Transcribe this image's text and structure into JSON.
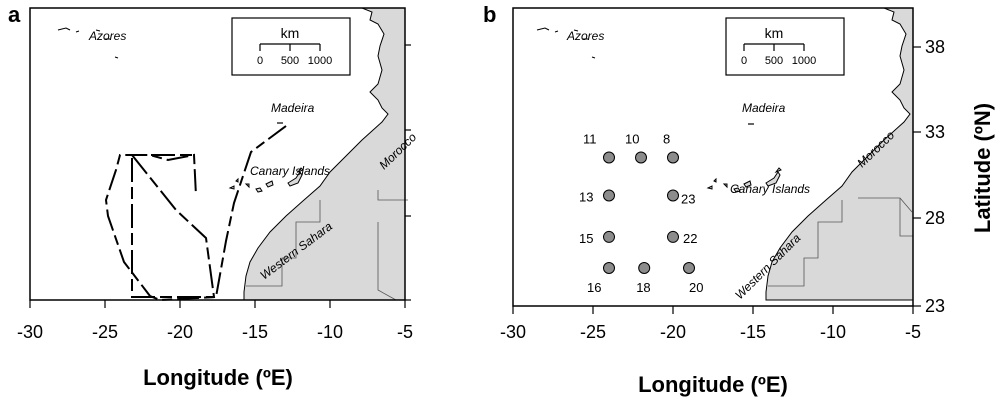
{
  "panels": {
    "a": {
      "letter": "a",
      "labels": {
        "azores": "Azores",
        "madeira": "Madeira",
        "canary": "Canary Islands",
        "morocco": "Morocco",
        "wsahara": "Western Sahara"
      },
      "scale": {
        "unit": "km",
        "ticks": [
          "0",
          "500",
          "1000"
        ]
      },
      "x_ticks": [
        "-30",
        "-25",
        "-20",
        "-15",
        "-10",
        "-5"
      ],
      "x_title": "Longitude (ºE)"
    },
    "b": {
      "letter": "b",
      "labels": {
        "azores": "Azores",
        "madeira": "Madeira",
        "canary": "Canary Islands",
        "morocco": "Morocco",
        "wsahara": "Western Sahara"
      },
      "scale": {
        "unit": "km",
        "ticks": [
          "0",
          "500",
          "1000"
        ]
      },
      "x_ticks": [
        "-30",
        "-25",
        "-20",
        "-15",
        "-10",
        "-5"
      ],
      "x_title": "Longitude (ºE)",
      "y_ticks": [
        "38",
        "33",
        "28",
        "23"
      ],
      "y_title": "Latitude (ºN)",
      "stations": [
        {
          "label": "11",
          "lon": -24.0,
          "lat": 31.6
        },
        {
          "label": "10",
          "lon": -22.0,
          "lat": 31.6
        },
        {
          "label": "8",
          "lon": -20.0,
          "lat": 31.6
        },
        {
          "label": "13",
          "lon": -24.0,
          "lat": 29.4
        },
        {
          "label": "23",
          "lon": -20.0,
          "lat": 29.4
        },
        {
          "label": "15",
          "lon": -24.0,
          "lat": 27.0
        },
        {
          "label": "22",
          "lon": -20.0,
          "lat": 27.0
        },
        {
          "label": "16",
          "lon": -24.0,
          "lat": 25.2
        },
        {
          "label": "18",
          "lon": -21.8,
          "lat": 25.2
        },
        {
          "label": "20",
          "lon": -19.0,
          "lat": 25.2
        }
      ]
    }
  },
  "colors": {
    "land": "#d9d9d9",
    "station_fill": "#8c8c8c",
    "stroke": "#000000"
  }
}
